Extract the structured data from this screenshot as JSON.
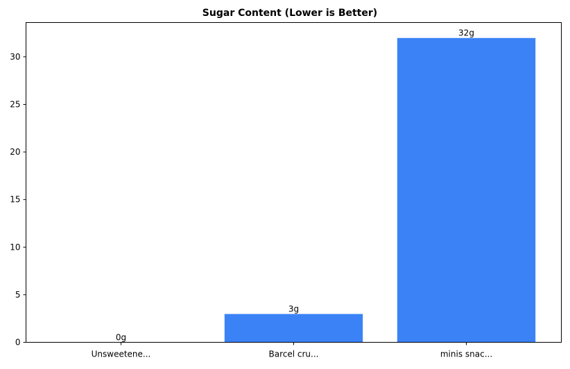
{
  "chart_data": {
    "type": "bar",
    "title": "Sugar Content (Lower is Better)",
    "xlabel": "",
    "ylabel": "",
    "categories": [
      "Unsweetene...",
      "Barcel cru...",
      "minis snac..."
    ],
    "values": [
      0,
      3,
      32
    ],
    "data_labels": [
      "0g",
      "3g",
      "32g"
    ],
    "ylim": [
      0,
      33.6
    ],
    "yticks": [
      0,
      5,
      10,
      15,
      20,
      25,
      30
    ],
    "grid": false,
    "legend": "none",
    "colors": {
      "bar_fill": "#3b82f6",
      "bar_edge": "#dbe8fb",
      "axis": "#000000",
      "background": "#ffffff"
    }
  }
}
